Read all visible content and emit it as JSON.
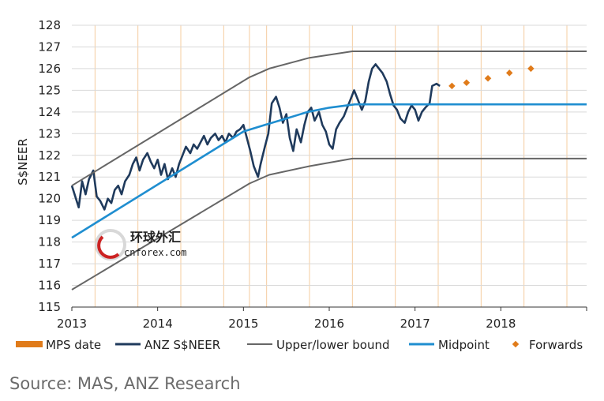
{
  "chart_data": {
    "type": "line",
    "title": "",
    "xlabel": "",
    "ylabel": "S$NEER",
    "xlim": [
      2013.0,
      2019.0
    ],
    "ylim": [
      115,
      128
    ],
    "x_ticks": [
      "2013",
      "2014",
      "2015",
      "2016",
      "2017",
      "2018"
    ],
    "y_ticks": [
      "115",
      "116",
      "117",
      "118",
      "119",
      "120",
      "121",
      "122",
      "123",
      "124",
      "125",
      "126",
      "127",
      "128"
    ],
    "grid": true,
    "legend_position": "bottom",
    "mps_dates": [
      2013.27,
      2013.77,
      2014.27,
      2014.77,
      2015.07,
      2015.27,
      2015.77,
      2016.27,
      2016.77,
      2017.27,
      2017.77,
      2018.27,
      2018.77
    ],
    "series": [
      {
        "name": "ANZ S$NEER",
        "color": "#1f3a5c",
        "points": [
          [
            2013.0,
            120.6
          ],
          [
            2013.04,
            120.1
          ],
          [
            2013.08,
            119.6
          ],
          [
            2013.12,
            120.8
          ],
          [
            2013.16,
            120.2
          ],
          [
            2013.2,
            120.9
          ],
          [
            2013.25,
            121.3
          ],
          [
            2013.29,
            120.1
          ],
          [
            2013.33,
            119.9
          ],
          [
            2013.38,
            119.5
          ],
          [
            2013.42,
            120.0
          ],
          [
            2013.46,
            119.8
          ],
          [
            2013.5,
            120.4
          ],
          [
            2013.54,
            120.6
          ],
          [
            2013.58,
            120.2
          ],
          [
            2013.62,
            120.8
          ],
          [
            2013.67,
            121.1
          ],
          [
            2013.71,
            121.6
          ],
          [
            2013.75,
            121.9
          ],
          [
            2013.79,
            121.3
          ],
          [
            2013.83,
            121.8
          ],
          [
            2013.88,
            122.1
          ],
          [
            2013.92,
            121.7
          ],
          [
            2013.96,
            121.4
          ],
          [
            2014.0,
            121.8
          ],
          [
            2014.04,
            121.1
          ],
          [
            2014.08,
            121.6
          ],
          [
            2014.12,
            120.9
          ],
          [
            2014.17,
            121.4
          ],
          [
            2014.21,
            121.0
          ],
          [
            2014.25,
            121.6
          ],
          [
            2014.29,
            122.0
          ],
          [
            2014.33,
            122.4
          ],
          [
            2014.38,
            122.1
          ],
          [
            2014.42,
            122.5
          ],
          [
            2014.46,
            122.3
          ],
          [
            2014.5,
            122.6
          ],
          [
            2014.54,
            122.9
          ],
          [
            2014.58,
            122.5
          ],
          [
            2014.62,
            122.8
          ],
          [
            2014.67,
            123.0
          ],
          [
            2014.71,
            122.7
          ],
          [
            2014.75,
            122.9
          ],
          [
            2014.79,
            122.6
          ],
          [
            2014.83,
            123.0
          ],
          [
            2014.88,
            122.8
          ],
          [
            2014.92,
            123.1
          ],
          [
            2014.96,
            123.2
          ],
          [
            2015.0,
            123.4
          ],
          [
            2015.04,
            122.8
          ],
          [
            2015.08,
            122.2
          ],
          [
            2015.12,
            121.5
          ],
          [
            2015.17,
            121.0
          ],
          [
            2015.2,
            121.6
          ],
          [
            2015.25,
            122.4
          ],
          [
            2015.29,
            123.0
          ],
          [
            2015.33,
            124.4
          ],
          [
            2015.38,
            124.7
          ],
          [
            2015.42,
            124.2
          ],
          [
            2015.46,
            123.5
          ],
          [
            2015.5,
            123.9
          ],
          [
            2015.54,
            122.8
          ],
          [
            2015.58,
            122.2
          ],
          [
            2015.62,
            123.2
          ],
          [
            2015.67,
            122.6
          ],
          [
            2015.71,
            123.4
          ],
          [
            2015.75,
            124.0
          ],
          [
            2015.79,
            124.2
          ],
          [
            2015.83,
            123.6
          ],
          [
            2015.88,
            124.0
          ],
          [
            2015.92,
            123.4
          ],
          [
            2015.96,
            123.1
          ],
          [
            2016.0,
            122.5
          ],
          [
            2016.04,
            122.3
          ],
          [
            2016.08,
            123.2
          ],
          [
            2016.12,
            123.5
          ],
          [
            2016.17,
            123.8
          ],
          [
            2016.21,
            124.2
          ],
          [
            2016.25,
            124.6
          ],
          [
            2016.29,
            125.0
          ],
          [
            2016.33,
            124.6
          ],
          [
            2016.38,
            124.1
          ],
          [
            2016.42,
            124.5
          ],
          [
            2016.46,
            125.4
          ],
          [
            2016.5,
            126.0
          ],
          [
            2016.54,
            126.2
          ],
          [
            2016.58,
            126.0
          ],
          [
            2016.62,
            125.8
          ],
          [
            2016.67,
            125.4
          ],
          [
            2016.71,
            124.8
          ],
          [
            2016.75,
            124.3
          ],
          [
            2016.79,
            124.1
          ],
          [
            2016.83,
            123.7
          ],
          [
            2016.88,
            123.5
          ],
          [
            2016.92,
            124.0
          ],
          [
            2016.96,
            124.3
          ],
          [
            2017.0,
            124.1
          ],
          [
            2017.04,
            123.6
          ],
          [
            2017.08,
            124.0
          ],
          [
            2017.12,
            124.2
          ],
          [
            2017.17,
            124.4
          ],
          [
            2017.2,
            125.2
          ],
          [
            2017.25,
            125.3
          ],
          [
            2017.29,
            125.2
          ]
        ]
      },
      {
        "name": "Midpoint",
        "color": "#1f8ed0",
        "points": [
          [
            2013.0,
            118.2
          ],
          [
            2015.0,
            123.1
          ],
          [
            2015.25,
            123.4
          ],
          [
            2015.5,
            123.7
          ],
          [
            2015.75,
            124.0
          ],
          [
            2016.0,
            124.2
          ],
          [
            2016.3,
            124.35
          ],
          [
            2019.0,
            124.35
          ]
        ]
      },
      {
        "name": "Upper/lower bound",
        "color": "#666666",
        "points": [
          [
            2013.0,
            120.6
          ],
          [
            2015.07,
            125.6
          ],
          [
            2015.3,
            126.0
          ],
          [
            2015.77,
            126.5
          ],
          [
            2016.27,
            126.8
          ],
          [
            2019.0,
            126.8
          ]
        ]
      },
      {
        "name": "Upper/lower bound",
        "color": "#666666",
        "points": [
          [
            2013.0,
            115.8
          ],
          [
            2015.07,
            120.7
          ],
          [
            2015.3,
            121.1
          ],
          [
            2015.77,
            121.5
          ],
          [
            2016.27,
            121.85
          ],
          [
            2019.0,
            121.85
          ]
        ]
      },
      {
        "name": "Forwards",
        "color": "#e07b1a",
        "points": [
          [
            2017.43,
            125.2
          ],
          [
            2017.6,
            125.35
          ],
          [
            2017.85,
            125.55
          ],
          [
            2018.1,
            125.8
          ],
          [
            2018.35,
            126.0
          ]
        ]
      }
    ],
    "legend": [
      {
        "label": "MPS date",
        "kind": "bar",
        "color": "#e07b1a"
      },
      {
        "label": "ANZ S$NEER",
        "kind": "line",
        "color": "#1f3a5c"
      },
      {
        "label": "Upper/lower bound",
        "kind": "line",
        "color": "#666666"
      },
      {
        "label": "Midpoint",
        "kind": "line",
        "color": "#1f8ed0"
      },
      {
        "label": "Forwards",
        "kind": "dot",
        "color": "#e07b1a"
      }
    ]
  },
  "watermark": {
    "cn": "环球外汇",
    "url": "cnforex.com"
  },
  "source": "Source: MAS, ANZ Research"
}
